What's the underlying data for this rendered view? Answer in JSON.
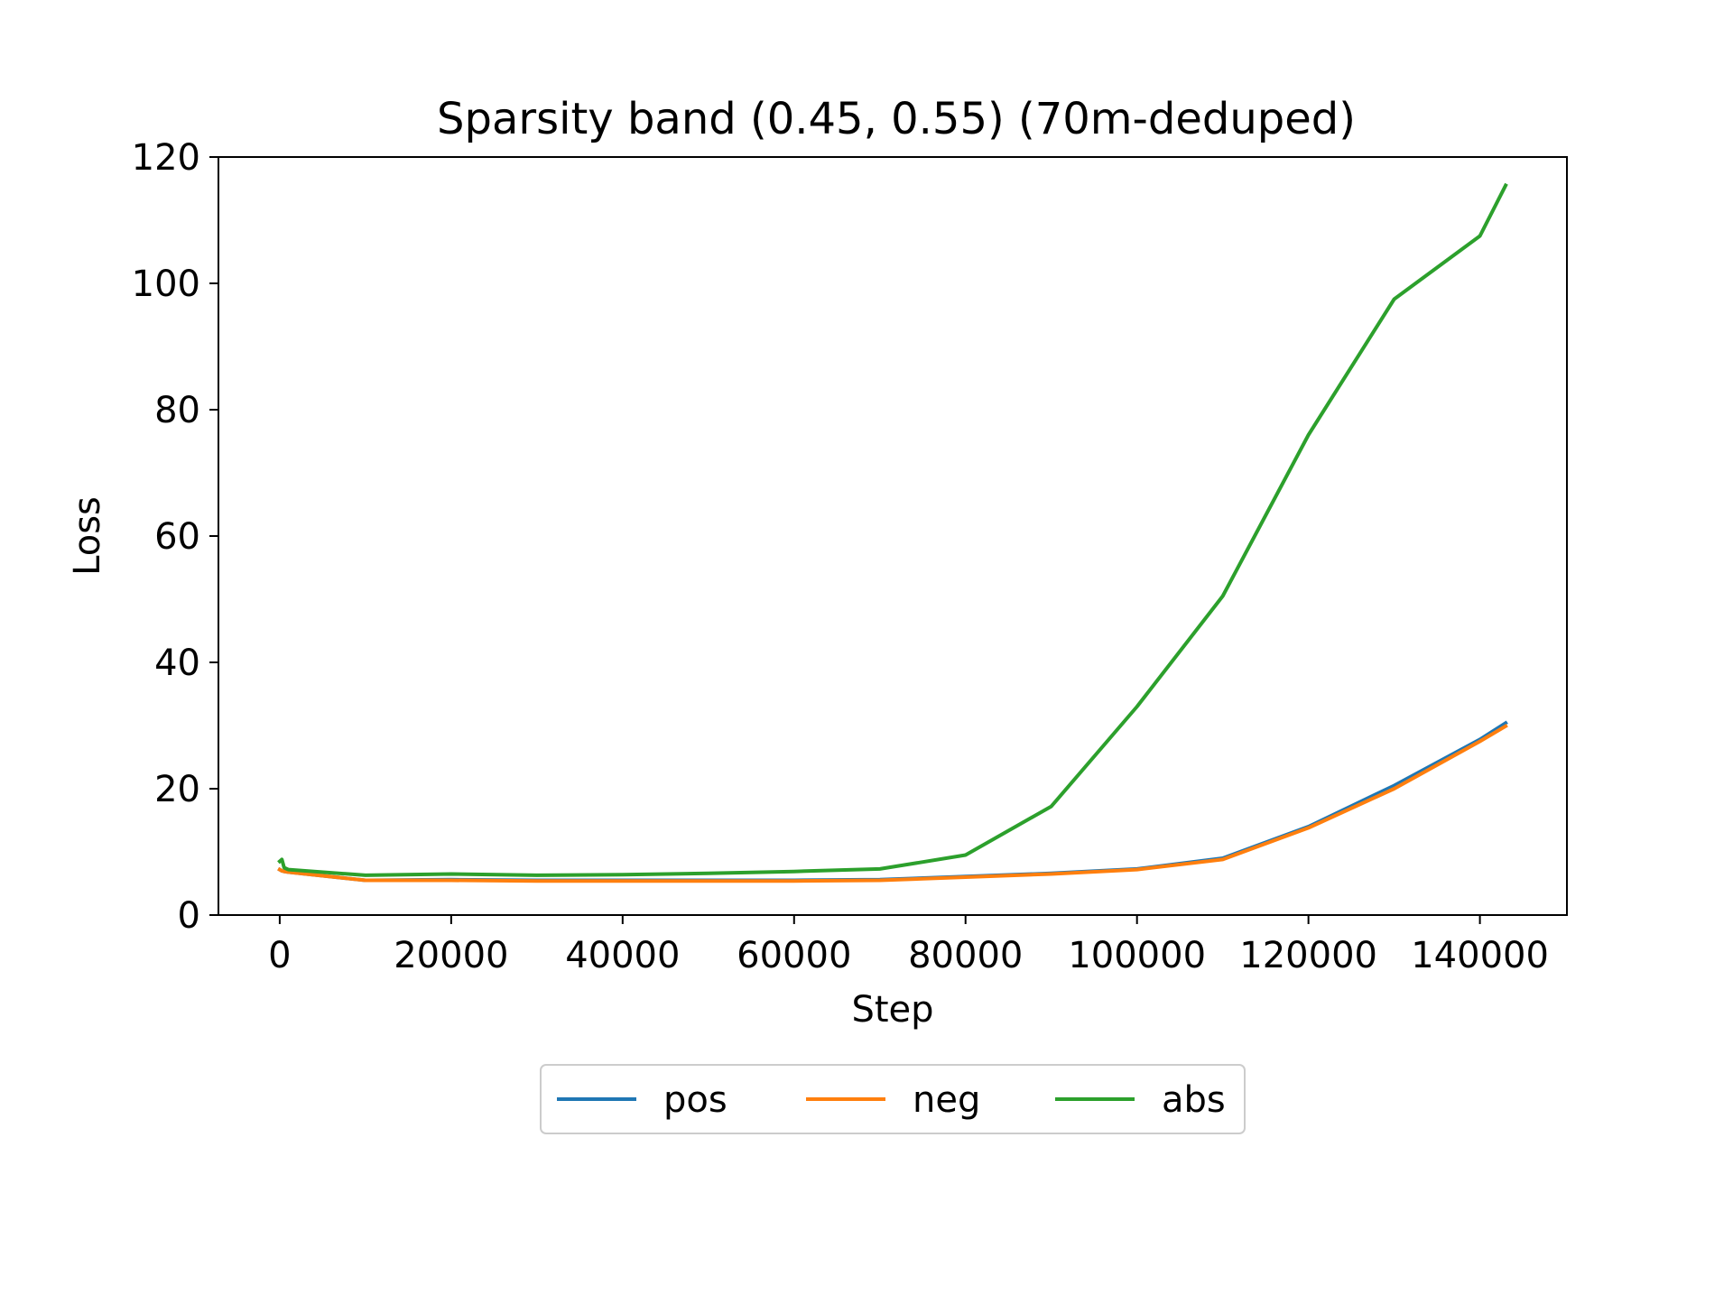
{
  "chart_data": {
    "type": "line",
    "title": "Sparsity band (0.45, 0.55) (70m-deduped)",
    "xlabel": "Step",
    "ylabel": "Loss",
    "xlim": [
      -7150,
      150150
    ],
    "ylim": [
      0,
      120
    ],
    "xticks": [
      0,
      20000,
      40000,
      60000,
      80000,
      100000,
      120000,
      140000
    ],
    "yticks": [
      0,
      20,
      40,
      60,
      80,
      100,
      120
    ],
    "xtick_labels": [
      "0",
      "20000",
      "40000",
      "60000",
      "80000",
      "100000",
      "120000",
      "140000"
    ],
    "ytick_labels": [
      "0",
      "20",
      "40",
      "60",
      "80",
      "100",
      "120"
    ],
    "grid": false,
    "legend_position": "bottom-center, below axes",
    "x": [
      0,
      256,
      512,
      1000,
      10000,
      20000,
      30000,
      40000,
      50000,
      60000,
      70000,
      80000,
      90000,
      100000,
      110000,
      120000,
      130000,
      140000,
      143000
    ],
    "series": [
      {
        "name": "pos",
        "color": "#1f77b4",
        "values": [
          7.2,
          7.0,
          6.9,
          6.8,
          5.5,
          5.6,
          5.5,
          5.5,
          5.5,
          5.5,
          5.6,
          6.1,
          6.6,
          7.3,
          9.0,
          14.0,
          20.5,
          27.8,
          30.4
        ]
      },
      {
        "name": "neg",
        "color": "#ff7f0e",
        "values": [
          7.2,
          7.0,
          6.9,
          6.8,
          5.5,
          5.5,
          5.4,
          5.4,
          5.4,
          5.4,
          5.5,
          6.0,
          6.5,
          7.2,
          8.8,
          13.8,
          20.0,
          27.5,
          29.9
        ]
      },
      {
        "name": "abs",
        "color": "#2ca02c",
        "values": [
          8.5,
          8.8,
          7.5,
          7.2,
          6.3,
          6.5,
          6.3,
          6.4,
          6.6,
          6.9,
          7.3,
          9.5,
          17.2,
          33.0,
          50.5,
          76.0,
          97.5,
          107.5,
          115.5
        ]
      }
    ]
  }
}
